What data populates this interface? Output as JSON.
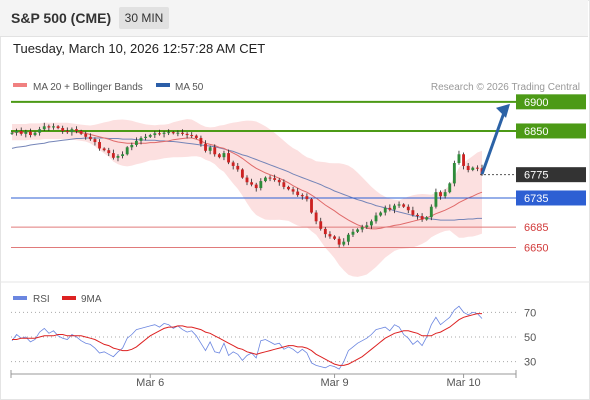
{
  "header": {
    "title": "S&P 500 (CME)",
    "timeframe": "30 MIN",
    "datetime": "Tuesday, March 10, 2026 12:57:28 AM CET"
  },
  "legend": {
    "ma20_label": "MA 20 + Bollinger Bands",
    "ma50_label": "MA 50",
    "credit": "Research © 2026 Trading Central",
    "rsi_label": "RSI",
    "rsi_ma_label": "9MA"
  },
  "colors": {
    "candle_up": "#2e8b3a",
    "candle_down": "#cc2222",
    "ma20": "#e06a6a",
    "bollinger_fill": "#fbd6d6",
    "ma50": "#7585b8",
    "green_level": "#4c9a16",
    "blue_level": "#2d5fd3",
    "red_level": "#e07a7a",
    "current_price": "#333333",
    "arrow": "#2b62a6",
    "rsi": "#6b86e0",
    "rsi_ma": "#dd2222"
  },
  "chart_data": [
    {
      "type": "candlestick",
      "x_labels": [
        "Mar 6",
        "Mar 9",
        "Mar 10"
      ],
      "ylim": [
        6610,
        6910
      ],
      "levels": [
        {
          "value": 6900,
          "label": "6900",
          "kind": "resistance",
          "style": "green-box"
        },
        {
          "value": 6850,
          "label": "6850",
          "kind": "resistance",
          "style": "green-box"
        },
        {
          "value": 6775,
          "label": "6775",
          "kind": "last",
          "style": "dark-box"
        },
        {
          "value": 6735,
          "label": "6735",
          "kind": "pivot",
          "style": "blue-box"
        },
        {
          "value": 6685,
          "label": "6685",
          "kind": "support",
          "style": "red-text"
        },
        {
          "value": 6650,
          "label": "6650",
          "kind": "support",
          "style": "red-text"
        }
      ],
      "close": [
        6847,
        6850,
        6845,
        6849,
        6843,
        6847,
        6853,
        6858,
        6856,
        6858,
        6855,
        6850,
        6848,
        6853,
        6850,
        6845,
        6840,
        6836,
        6831,
        6820,
        6817,
        6812,
        6804,
        6807,
        6810,
        6822,
        6826,
        6833,
        6838,
        6840,
        6843,
        6846,
        6845,
        6847,
        6848,
        6846,
        6847,
        6845,
        6843,
        6842,
        6838,
        6828,
        6816,
        6822,
        6810,
        6805,
        6812,
        6796,
        6790,
        6784,
        6770,
        6762,
        6758,
        6752,
        6764,
        6770,
        6769,
        6766,
        6762,
        6754,
        6750,
        6746,
        6740,
        6738,
        6733,
        6710,
        6695,
        6682,
        6673,
        6669,
        6665,
        6655,
        6660,
        6672,
        6677,
        6681,
        6685,
        6688,
        6695,
        6705,
        6710,
        6718,
        6715,
        6722,
        6724,
        6720,
        6714,
        6706,
        6704,
        6698,
        6702,
        6720,
        6745,
        6738,
        6745,
        6760,
        6795,
        6810,
        6790,
        6783,
        6787,
        6786,
        6776
      ],
      "series": [
        {
          "name": "MA 20 + Bollinger Bands",
          "values": [
            6848,
            6848,
            6848,
            6848,
            6849,
            6849,
            6849,
            6850,
            6850,
            6850,
            6850,
            6850,
            6850,
            6849,
            6848,
            6847,
            6846,
            6844,
            6842,
            6840,
            6838,
            6836,
            6833,
            6831,
            6830,
            6829,
            6829,
            6829,
            6829,
            6829,
            6830,
            6830,
            6831,
            6832,
            6833,
            6835,
            6836,
            6837,
            6838,
            6838,
            6836,
            6833,
            6829,
            6827,
            6825,
            6822,
            6820,
            6816,
            6812,
            6808,
            6803,
            6797,
            6791,
            6786,
            6782,
            6778,
            6775,
            6772,
            6769,
            6765,
            6761,
            6756,
            6752,
            6748,
            6745,
            6740,
            6735,
            6729,
            6723,
            6718,
            6713,
            6707,
            6702,
            6697,
            6693,
            6689,
            6686,
            6683,
            6682,
            6682,
            6683,
            6685,
            6686,
            6688,
            6689,
            6691,
            6693,
            6695,
            6697,
            6699,
            6701,
            6704,
            6708,
            6711,
            6714,
            6718,
            6722,
            6727,
            6731,
            6735,
            6738,
            6742,
            6745
          ]
        },
        {
          "name": "MA 50",
          "values": [
            6820,
            6822,
            6823,
            6824,
            6826,
            6827,
            6828,
            6829,
            6831,
            6832,
            6833,
            6834,
            6835,
            6836,
            6837,
            6837,
            6838,
            6838,
            6838,
            6838,
            6838,
            6837,
            6837,
            6837,
            6836,
            6836,
            6836,
            6835,
            6835,
            6834,
            6834,
            6834,
            6833,
            6833,
            6832,
            6832,
            6831,
            6830,
            6829,
            6828,
            6827,
            6826,
            6825,
            6824,
            6823,
            6821,
            6819,
            6817,
            6815,
            6812,
            6809,
            6807,
            6804,
            6801,
            6798,
            6795,
            6792,
            6789,
            6786,
            6783,
            6780,
            6776,
            6773,
            6770,
            6767,
            6764,
            6761,
            6758,
            6754,
            6751,
            6747,
            6744,
            6741,
            6738,
            6735,
            6732,
            6730,
            6727,
            6725,
            6722,
            6720,
            6718,
            6716,
            6713,
            6711,
            6709,
            6707,
            6705,
            6703,
            6702,
            6700,
            6699,
            6698,
            6697,
            6697,
            6697,
            6697,
            6698,
            6698,
            6699,
            6699,
            6700,
            6700
          ]
        }
      ]
    },
    {
      "type": "line",
      "ylim": [
        20,
        80
      ],
      "y_ticks": [
        70,
        50,
        30
      ],
      "series": [
        {
          "name": "RSI",
          "values": [
            47,
            52,
            49,
            50,
            46,
            48,
            54,
            57,
            53,
            55,
            51,
            49,
            48,
            52,
            50,
            47,
            45,
            44,
            41,
            37,
            38,
            36,
            34,
            38,
            41,
            49,
            52,
            56,
            57,
            58,
            59,
            60,
            58,
            61,
            60,
            57,
            59,
            56,
            54,
            55,
            51,
            45,
            39,
            46,
            38,
            37,
            45,
            35,
            38,
            36,
            31,
            35,
            37,
            33,
            47,
            48,
            46,
            44,
            45,
            40,
            42,
            40,
            37,
            40,
            37,
            29,
            27,
            26,
            25,
            27,
            26,
            24,
            30,
            39,
            42,
            45,
            47,
            49,
            52,
            56,
            57,
            58,
            55,
            60,
            58,
            52,
            49,
            44,
            47,
            43,
            50,
            60,
            66,
            60,
            63,
            66,
            72,
            75,
            70,
            68,
            70,
            69,
            65
          ]
        },
        {
          "name": "9MA",
          "values": [
            48,
            48,
            49,
            49,
            49,
            49,
            50,
            51,
            51,
            51,
            52,
            52,
            51,
            51,
            51,
            51,
            50,
            49,
            48,
            46,
            44,
            43,
            41,
            40,
            39,
            39,
            40,
            42,
            45,
            48,
            51,
            53,
            55,
            57,
            58,
            58,
            59,
            59,
            58,
            58,
            57,
            56,
            54,
            53,
            51,
            49,
            47,
            45,
            43,
            41,
            40,
            38,
            37,
            36,
            37,
            38,
            39,
            40,
            41,
            42,
            43,
            43,
            42,
            42,
            41,
            39,
            36,
            34,
            32,
            30,
            28,
            27,
            27,
            28,
            30,
            32,
            34,
            37,
            40,
            43,
            46,
            49,
            51,
            53,
            54,
            55,
            55,
            54,
            53,
            51,
            51,
            51,
            53,
            54,
            56,
            58,
            61,
            64,
            66,
            67,
            68,
            69,
            69
          ]
        }
      ]
    }
  ]
}
